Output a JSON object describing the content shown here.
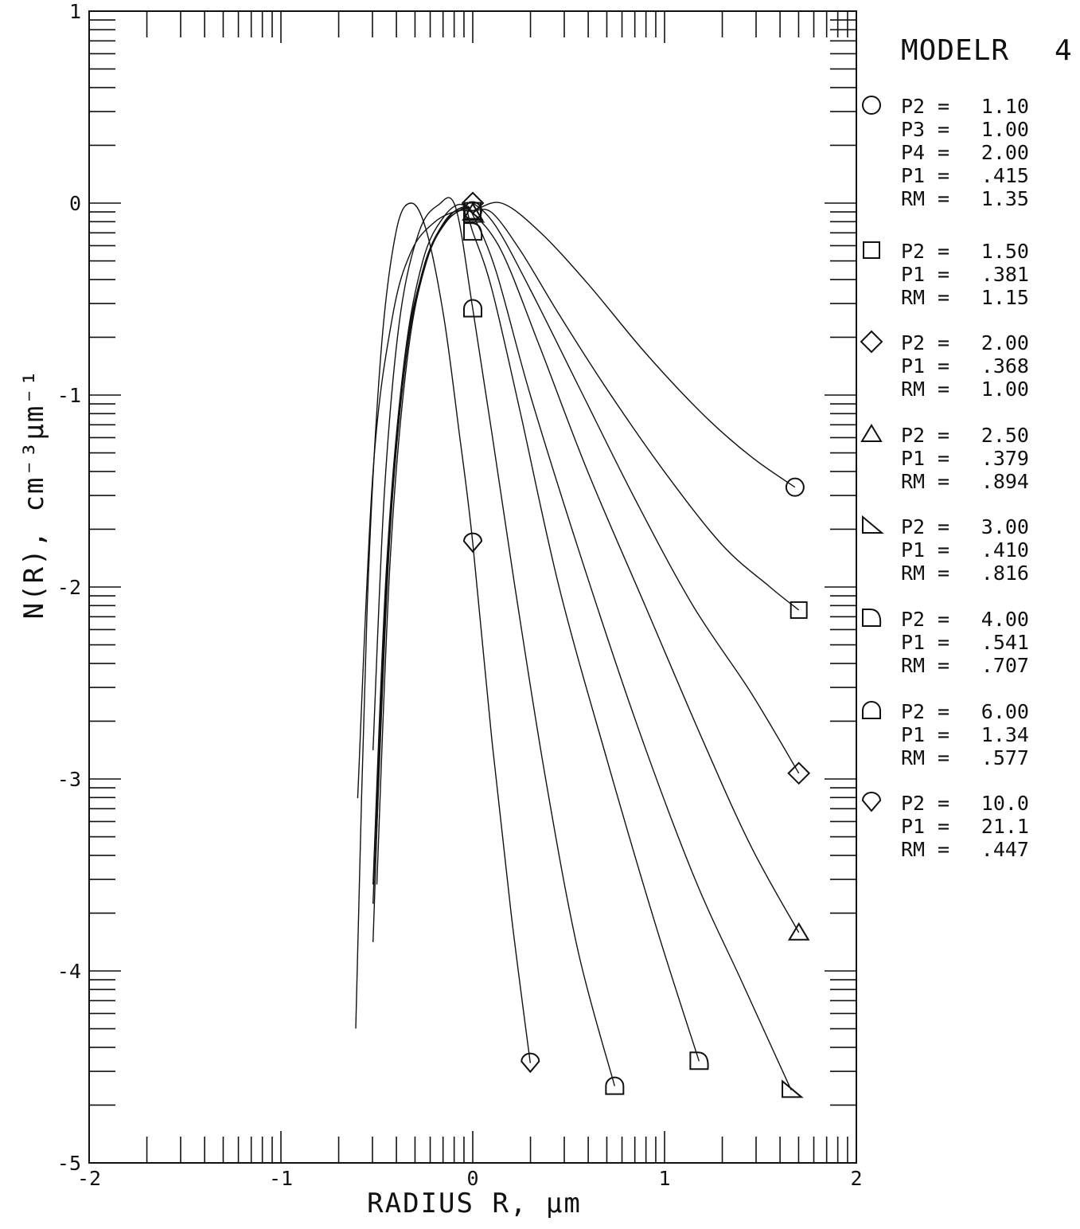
{
  "chart_data": {
    "type": "line",
    "title": "",
    "xlabel": "RADIUS R, µm",
    "ylabel": "N(R), cm⁻³µm⁻¹",
    "xlim": [
      -2,
      2
    ],
    "ylim": [
      -5,
      1
    ],
    "x_tick_labels": [
      "-2",
      "-1",
      "0",
      "1",
      "2"
    ],
    "y_tick_labels": [
      "1",
      "0",
      "-1",
      "-2",
      "-3",
      "-4",
      "-5"
    ],
    "grid": false,
    "legend_position": "right",
    "model_label": "MODELR",
    "model_number": "4",
    "series": [
      {
        "marker": "circle",
        "params": [
          [
            "P2",
            "1.10"
          ],
          [
            "P3",
            "1.00"
          ],
          [
            "P4",
            "2.00"
          ],
          [
            "P1",
            ".415"
          ],
          [
            "RM",
            "1.35"
          ]
        ],
        "x": [
          -0.6,
          -0.52,
          -0.42,
          -0.32,
          -0.2,
          -0.08,
          0,
          0.15,
          0.35,
          0.6,
          0.9,
          1.2,
          1.45,
          1.68
        ],
        "y": [
          -3.1,
          -1.4,
          -0.6,
          -0.25,
          -0.1,
          -0.04,
          -0.04,
          0,
          -0.15,
          -0.42,
          -0.78,
          -1.1,
          -1.32,
          -1.48
        ]
      },
      {
        "marker": "square",
        "params": [
          [
            "P2",
            "1.50"
          ],
          [
            "P1",
            ".381"
          ],
          [
            "RM",
            "1.15"
          ]
        ],
        "x": [
          -0.52,
          -0.45,
          -0.36,
          -0.26,
          -0.16,
          -0.05,
          0,
          0.1,
          0.25,
          0.45,
          0.7,
          1.0,
          1.3,
          1.55,
          1.7
        ],
        "y": [
          -3.55,
          -1.9,
          -0.85,
          -0.35,
          -0.12,
          -0.03,
          -0.04,
          -0.05,
          -0.25,
          -0.58,
          -0.97,
          -1.4,
          -1.78,
          -2.0,
          -2.12
        ]
      },
      {
        "marker": "diamond",
        "params": [
          [
            "P2",
            "2.00"
          ],
          [
            "P1",
            ".368"
          ],
          [
            "RM",
            "1.00"
          ]
        ],
        "x": [
          -0.5,
          -0.43,
          -0.34,
          -0.24,
          -0.14,
          -0.04,
          0,
          0.12,
          0.3,
          0.55,
          0.85,
          1.15,
          1.45,
          1.7
        ],
        "y": [
          -3.25,
          -1.7,
          -0.75,
          -0.3,
          -0.1,
          -0.02,
          0,
          -0.12,
          -0.45,
          -0.95,
          -1.55,
          -2.1,
          -2.55,
          -2.97
        ]
      },
      {
        "marker": "triangle",
        "params": [
          [
            "P2",
            "2.50"
          ],
          [
            "P1",
            ".379"
          ],
          [
            "RM",
            ".894"
          ]
        ],
        "x": [
          -0.52,
          -0.45,
          -0.36,
          -0.26,
          -0.15,
          -0.05,
          0,
          0.15,
          0.35,
          0.6,
          0.9,
          1.2,
          1.45,
          1.7
        ],
        "y": [
          -3.85,
          -2.0,
          -0.9,
          -0.35,
          -0.1,
          -0.02,
          -0.05,
          -0.25,
          -0.75,
          -1.4,
          -2.1,
          -2.8,
          -3.35,
          -3.8
        ]
      },
      {
        "marker": "right-triangle",
        "params": [
          [
            "P2",
            "3.00"
          ],
          [
            "P1",
            ".410"
          ],
          [
            "RM",
            ".816"
          ]
        ],
        "x": [
          -0.5,
          -0.43,
          -0.34,
          -0.24,
          -0.13,
          -0.04,
          0,
          0.12,
          0.3,
          0.55,
          0.85,
          1.15,
          1.4,
          1.66
        ],
        "y": [
          -3.55,
          -1.85,
          -0.8,
          -0.3,
          -0.08,
          -0.02,
          -0.06,
          -0.35,
          -1.0,
          -1.8,
          -2.7,
          -3.5,
          -4.05,
          -4.62
        ]
      },
      {
        "marker": "d-shape",
        "params": [
          [
            "P2",
            "4.00"
          ],
          [
            "P1",
            ".541"
          ],
          [
            "RM",
            ".707"
          ]
        ],
        "x": [
          -0.52,
          -0.45,
          -0.36,
          -0.26,
          -0.15,
          -0.05,
          0,
          0.1,
          0.25,
          0.45,
          0.7,
          0.95,
          1.18
        ],
        "y": [
          -3.65,
          -1.95,
          -0.85,
          -0.3,
          -0.07,
          -0.01,
          -0.15,
          -0.45,
          -1.1,
          -2.0,
          -2.9,
          -3.75,
          -4.47
        ]
      },
      {
        "marker": "bell",
        "params": [
          [
            "P2",
            "6.00"
          ],
          [
            "P1",
            "1.34"
          ],
          [
            "RM",
            ".577"
          ]
        ],
        "x": [
          -0.52,
          -0.46,
          -0.38,
          -0.28,
          -0.18,
          -0.09,
          0,
          0.1,
          0.22,
          0.38,
          0.55,
          0.74
        ],
        "y": [
          -2.85,
          -1.5,
          -0.6,
          -0.15,
          -0.01,
          -0.02,
          -0.55,
          -1.2,
          -2.0,
          -3.0,
          -3.9,
          -4.6
        ]
      },
      {
        "marker": "bottom-point",
        "params": [
          [
            "P2",
            "10.0"
          ],
          [
            "P1",
            "21.1"
          ],
          [
            "RM",
            ".447"
          ]
        ],
        "x": [
          -0.61,
          -0.55,
          -0.48,
          -0.4,
          -0.32,
          -0.24,
          -0.15,
          -0.07,
          0,
          0.1,
          0.2,
          0.3
        ],
        "y": [
          -4.3,
          -2.1,
          -0.8,
          -0.15,
          0,
          -0.15,
          -0.6,
          -1.2,
          -1.77,
          -2.8,
          -3.7,
          -4.48
        ]
      }
    ]
  }
}
